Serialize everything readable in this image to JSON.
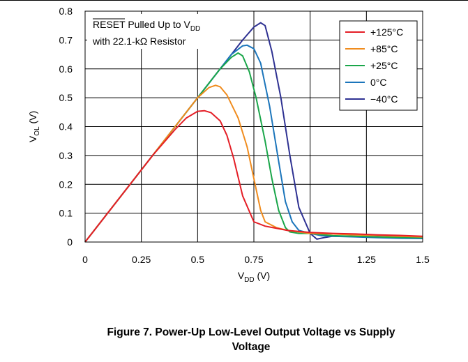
{
  "chart_data": {
    "type": "line",
    "xlabel": {
      "main": "V",
      "sub": "DD",
      "unit": " (V)"
    },
    "ylabel": {
      "main": "V",
      "sub": "OL",
      "unit": " (V)"
    },
    "xlim": [
      0,
      1.5
    ],
    "ylim": [
      0,
      0.8
    ],
    "xticks": [
      "0",
      "0.25",
      "0.5",
      "0.75",
      "1",
      "1.25",
      "1.5"
    ],
    "yticks": [
      "0",
      "0.1",
      "0.2",
      "0.3",
      "0.4",
      "0.5",
      "0.6",
      "0.7",
      "0.8"
    ],
    "xtick_values": [
      0,
      0.25,
      0.5,
      0.75,
      1,
      1.25,
      1.5
    ],
    "ytick_values": [
      0,
      0.1,
      0.2,
      0.3,
      0.4,
      0.5,
      0.6,
      0.7,
      0.8
    ],
    "grid": true,
    "legend_position": "top-right",
    "annotation": {
      "line1_overlined": "RESET",
      "line1_rest": " Pulled Up to V",
      "line1_sub": "DD",
      "line2": "with 22.1-kΩ Resistor"
    },
    "series": [
      {
        "name": "+125°C",
        "color": "#e41e26",
        "x": [
          0,
          0.3,
          0.4,
          0.45,
          0.5,
          0.53,
          0.56,
          0.6,
          0.63,
          0.66,
          0.7,
          0.75,
          0.8,
          0.9,
          1.0,
          1.1,
          1.2,
          1.3,
          1.4,
          1.5
        ],
        "y": [
          0,
          0.3,
          0.39,
          0.43,
          0.453,
          0.455,
          0.448,
          0.42,
          0.37,
          0.29,
          0.16,
          0.07,
          0.055,
          0.04,
          0.033,
          0.03,
          0.028,
          0.025,
          0.023,
          0.02
        ]
      },
      {
        "name": "+85°C",
        "color": "#f08c1e",
        "x": [
          0,
          0.5,
          0.55,
          0.58,
          0.6,
          0.63,
          0.68,
          0.72,
          0.75,
          0.78,
          0.8,
          0.85,
          0.9,
          1.0,
          1.1,
          1.2,
          1.3,
          1.4,
          1.5
        ],
        "y": [
          0,
          0.5,
          0.535,
          0.543,
          0.538,
          0.51,
          0.43,
          0.33,
          0.22,
          0.11,
          0.07,
          0.05,
          0.04,
          0.03,
          0.028,
          0.025,
          0.023,
          0.02,
          0.018
        ]
      },
      {
        "name": "+25°C",
        "color": "#1aa64a",
        "x": [
          0,
          0.6,
          0.65,
          0.68,
          0.7,
          0.73,
          0.76,
          0.8,
          0.83,
          0.86,
          0.89,
          0.91,
          0.95,
          1.0,
          1.1,
          1.2,
          1.3,
          1.4,
          1.5
        ],
        "y": [
          0,
          0.6,
          0.64,
          0.655,
          0.645,
          0.59,
          0.5,
          0.35,
          0.22,
          0.11,
          0.05,
          0.035,
          0.03,
          0.03,
          0.022,
          0.02,
          0.018,
          0.016,
          0.015
        ]
      },
      {
        "name": "0°C",
        "color": "#1b75bb",
        "x": [
          0,
          0.65,
          0.7,
          0.72,
          0.75,
          0.78,
          0.82,
          0.86,
          0.89,
          0.92,
          0.95,
          1.0,
          1.05,
          1.1,
          1.2,
          1.3,
          1.4,
          1.5
        ],
        "y": [
          0,
          0.65,
          0.68,
          0.682,
          0.67,
          0.62,
          0.47,
          0.28,
          0.14,
          0.07,
          0.04,
          0.03,
          0.022,
          0.02,
          0.018,
          0.015,
          0.013,
          0.012
        ]
      },
      {
        "name": "−40°C",
        "color": "#2e3192",
        "x": [
          0,
          0.7,
          0.75,
          0.78,
          0.8,
          0.83,
          0.87,
          0.91,
          0.95,
          1.0,
          1.03,
          1.06,
          1.1,
          1.2,
          1.3,
          1.4,
          1.5
        ],
        "y": [
          0,
          0.7,
          0.745,
          0.76,
          0.75,
          0.66,
          0.5,
          0.3,
          0.12,
          0.03,
          0.01,
          0.015,
          0.02,
          0.02,
          0.018,
          0.015,
          0.013
        ]
      }
    ]
  },
  "caption": {
    "line1": "Figure 7. Power-Up Low-Level Output Voltage vs Supply",
    "line2": "Voltage"
  }
}
